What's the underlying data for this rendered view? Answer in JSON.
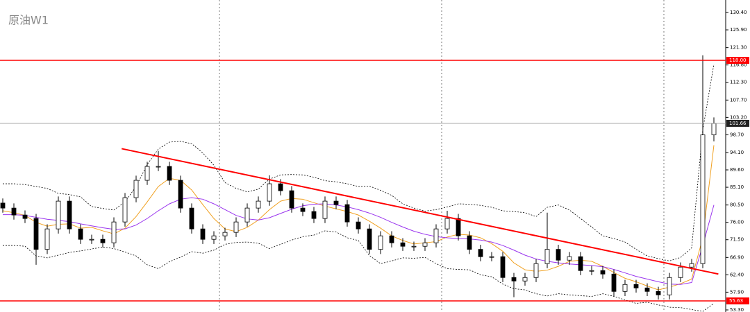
{
  "chart_data": {
    "type": "candlestick",
    "title": "原油W1",
    "open": [
      81.0,
      79.7,
      77.9,
      77.0,
      69.0,
      74.3,
      81.5,
      74.3,
      71.6,
      71.6,
      70.7,
      76.1,
      82.4,
      86.9,
      90.5,
      90.5,
      86.9,
      79.7,
      74.3,
      71.6,
      72.5,
      73.4,
      76.1,
      79.7,
      81.5,
      86.0,
      84.2,
      79.7,
      78.8,
      77.0,
      81.5,
      80.6,
      76.1,
      74.3,
      69.0,
      72.5,
      70.7,
      69.8,
      69.8,
      70.7,
      74.3,
      77.0,
      72.5,
      69.0,
      67.1,
      67.1,
      61.7,
      60.8,
      61.7,
      65.3,
      69.0,
      66.2,
      67.1,
      63.5,
      63.5,
      62.6,
      58.1,
      59.9,
      59.0,
      58.1,
      57.2,
      61.7,
      64.4,
      65.3,
      98.7
    ],
    "high": [
      82.2,
      80.9,
      79.1,
      78.2,
      75.5,
      82.7,
      82.7,
      75.5,
      72.8,
      72.8,
      77.3,
      83.6,
      88.1,
      91.7,
      94.5,
      91.7,
      88.1,
      80.9,
      75.5,
      73.7,
      74.6,
      77.3,
      80.9,
      82.7,
      88.2,
      87.2,
      85.4,
      80.9,
      80.0,
      82.7,
      82.7,
      81.8,
      77.3,
      75.5,
      73.7,
      73.7,
      71.9,
      71.0,
      71.9,
      75.5,
      79.0,
      78.2,
      73.7,
      70.2,
      68.3,
      68.3,
      62.9,
      62.9,
      66.5,
      78.5,
      70.2,
      68.3,
      68.3,
      64.7,
      64.7,
      63.8,
      61.1,
      61.1,
      60.2,
      59.3,
      62.9,
      65.6,
      66.5,
      119.3,
      103.2
    ],
    "low": [
      78.5,
      76.7,
      75.8,
      65.0,
      67.8,
      73.1,
      73.1,
      70.4,
      70.4,
      69.5,
      69.5,
      74.9,
      81.2,
      85.7,
      89.3,
      85.7,
      78.5,
      73.1,
      70.4,
      70.4,
      71.3,
      72.2,
      74.9,
      78.5,
      80.3,
      83.0,
      78.5,
      77.6,
      75.8,
      75.8,
      79.4,
      74.9,
      73.1,
      67.8,
      67.8,
      69.5,
      68.6,
      68.6,
      68.6,
      69.5,
      73.1,
      71.3,
      67.8,
      65.9,
      65.9,
      60.5,
      56.6,
      59.6,
      60.5,
      64.1,
      65.0,
      65.0,
      62.3,
      62.3,
      61.4,
      56.9,
      56.9,
      57.8,
      56.9,
      56.0,
      56.0,
      60.5,
      63.2,
      64.1,
      97.0
    ],
    "close": [
      79.7,
      77.9,
      77.0,
      69.0,
      74.3,
      81.5,
      74.3,
      71.6,
      71.6,
      70.7,
      76.1,
      82.4,
      86.9,
      90.5,
      90.5,
      86.9,
      79.7,
      74.3,
      71.6,
      72.5,
      73.4,
      76.1,
      79.7,
      81.5,
      86.0,
      84.2,
      79.7,
      78.8,
      77.0,
      81.5,
      80.6,
      76.1,
      74.3,
      69.0,
      72.5,
      70.7,
      69.8,
      69.8,
      70.7,
      74.3,
      77.0,
      72.5,
      69.0,
      67.1,
      67.1,
      61.7,
      60.8,
      61.7,
      65.3,
      69.0,
      66.2,
      67.1,
      63.5,
      63.5,
      62.6,
      58.1,
      59.9,
      59.0,
      58.1,
      57.2,
      61.7,
      64.4,
      65.3,
      98.7,
      101.66
    ],
    "lines": [
      {
        "color": "#f0a020",
        "values": [
          79,
          78.5,
          77.8,
          76,
          75,
          75.5,
          75.6,
          74.5,
          74.7,
          73.8,
          73,
          74.5,
          77.5,
          81.3,
          85.3,
          87.4,
          86.9,
          84.4,
          80.6,
          77,
          74.3,
          73.6,
          74.7,
          76.6,
          79.3,
          81.5,
          82.2,
          82,
          81.1,
          80.2,
          79.5,
          78.8,
          77.9,
          76.3,
          74.5,
          72.5,
          71.3,
          70.4,
          70.7,
          71,
          72.2,
          72.9,
          72.7,
          72,
          70.5,
          68.5,
          65.5,
          63.7,
          63.3,
          63.6,
          64.6,
          65.9,
          66.2,
          65.9,
          64.6,
          63,
          61.5,
          60.6,
          59.5,
          58.5,
          59.2,
          60.1,
          61.3,
          72,
          96
        ]
      },
      {
        "color": "#9933ee",
        "values": [
          78,
          78,
          77.8,
          77.3,
          76.8,
          76.5,
          76.2,
          75.6,
          75.1,
          74.6,
          74.2,
          74.3,
          75.3,
          77,
          79,
          80.8,
          82,
          82.4,
          82,
          80.8,
          79.3,
          77.8,
          76.9,
          76.6,
          77.2,
          78.3,
          79.4,
          80.3,
          80.7,
          80.8,
          80.5,
          80,
          79.3,
          78.4,
          77.3,
          76,
          74.8,
          73.7,
          72.9,
          72.3,
          72,
          71.8,
          71.7,
          71.4,
          70.9,
          70,
          68.8,
          67.5,
          66.5,
          65.9,
          65.5,
          65.2,
          65,
          64.8,
          64.5,
          63.8,
          62.9,
          62,
          61.3,
          60.6,
          60,
          59.9,
          60.4,
          70,
          80.5
        ]
      },
      {
        "color": "#000000",
        "dashed": true,
        "values": [
          86,
          86,
          85.8,
          85.3,
          84.8,
          83.5,
          83.2,
          82.6,
          80.1,
          79.6,
          79.2,
          81.3,
          85.3,
          91,
          95,
          96.8,
          97,
          96.4,
          94,
          90.8,
          86.3,
          84.8,
          83.9,
          84.6,
          87.2,
          88.3,
          88.4,
          88.3,
          87.7,
          86.8,
          86.5,
          86,
          85.3,
          85.4,
          84.3,
          83,
          80.8,
          79.7,
          78.9,
          79.3,
          80,
          80.8,
          80.7,
          80.4,
          79.9,
          79,
          78.8,
          78.5,
          77.5,
          79.9,
          80.5,
          79.2,
          77,
          74.8,
          72.5,
          71.8,
          70.9,
          69,
          67.3,
          66.6,
          66,
          66.9,
          69.4,
          100,
          117
        ]
      },
      {
        "color": "#000000",
        "dashed": true,
        "values": [
          70,
          70,
          69.8,
          67.3,
          66.8,
          67.5,
          68.2,
          68.6,
          69.1,
          69.6,
          69.2,
          68.3,
          67.3,
          65,
          64,
          65.8,
          67,
          68.4,
          68,
          68.8,
          70.3,
          70.8,
          70.9,
          70.6,
          69.2,
          70.3,
          71.4,
          72.3,
          72.7,
          73.8,
          73.5,
          72,
          71.3,
          67.4,
          65.3,
          66,
          66.8,
          66.7,
          66.9,
          65.3,
          64,
          63.8,
          63.7,
          62.4,
          61.9,
          60,
          58.8,
          58.5,
          57.5,
          56.9,
          57.5,
          57.2,
          57,
          56.8,
          57.5,
          56.8,
          55.9,
          55,
          55.3,
          54.6,
          54,
          53.9,
          53.4,
          52.9,
          55
        ]
      }
    ],
    "trendline": {
      "x": [
        10.7,
        64.4
      ],
      "y": [
        95.1,
        62.6
      ],
      "color": "#ff0000"
    },
    "separators": [
      19.5,
      39.5,
      59.5
    ],
    "levels": [
      {
        "value": 118,
        "label": "118.00",
        "color": "#ff0000"
      },
      {
        "value": 55.63,
        "label": "55.63",
        "color": "#ff0000"
      }
    ],
    "current_price": {
      "value": 101.66,
      "label": "101.66",
      "color": "#999999"
    },
    "ylim": [
      52.76,
      133.64
    ],
    "yticks": [
      {
        "value": 130.4,
        "label": "130.40"
      },
      {
        "value": 125.9,
        "label": "125.90"
      },
      {
        "value": 121.3,
        "label": "121.30"
      },
      {
        "value": 116.8,
        "label": "116.80"
      },
      {
        "value": 112.3,
        "label": "112.30"
      },
      {
        "value": 107.7,
        "label": "107.70"
      },
      {
        "value": 103.2,
        "label": "103.20"
      },
      {
        "value": 98.7,
        "label": "98.70"
      },
      {
        "value": 94.1,
        "label": "94.10"
      },
      {
        "value": 89.6,
        "label": "89.60"
      },
      {
        "value": 85.1,
        "label": "85.10"
      },
      {
        "value": 80.5,
        "label": "80.50"
      },
      {
        "value": 76.0,
        "label": "76.00"
      },
      {
        "value": 71.5,
        "label": "71.50"
      },
      {
        "value": 66.9,
        "label": "66.90"
      },
      {
        "value": 62.4,
        "label": "62.40"
      },
      {
        "value": 57.9,
        "label": "57.90"
      },
      {
        "value": 53.3,
        "label": "53.30"
      }
    ]
  }
}
